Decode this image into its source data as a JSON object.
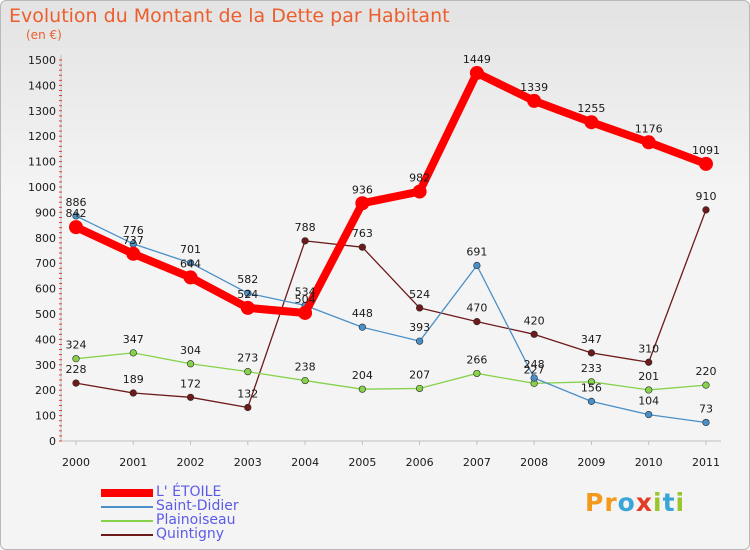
{
  "header": {
    "title": "Evolution du Montant de la Dette par Habitant",
    "subtitle": "(en €)"
  },
  "logo": {
    "letters": [
      "P",
      "r",
      "o",
      "x",
      "i",
      "t",
      "i"
    ],
    "colors": [
      "#f39a1c",
      "#f39a1c",
      "#3aa6d8",
      "#e53a24",
      "#9bc52c",
      "#3aa6d8",
      "#9bc52c"
    ]
  },
  "chart_data": {
    "type": "line",
    "title": "Evolution du Montant de la Dette par Habitant",
    "subtitle": "(en €)",
    "x": [
      "2000",
      "2001",
      "2002",
      "2003",
      "2004",
      "2005",
      "2006",
      "2007",
      "2008",
      "2009",
      "2010",
      "2011"
    ],
    "ylim": [
      0,
      1500
    ],
    "yticks": [
      "0",
      "100",
      "200",
      "300",
      "400",
      "500",
      "600",
      "700",
      "800",
      "900",
      "1000",
      "1100",
      "1200",
      "1300",
      "1400",
      "1500"
    ],
    "grid": false,
    "legend": "bottom-left",
    "series": [
      {
        "name": "L' ÉTOILE",
        "color": "#ff0000",
        "values": [
          842,
          737,
          644,
          524,
          504,
          936,
          982,
          1449,
          1339,
          1255,
          1176,
          1091
        ]
      },
      {
        "name": "Saint-Didier",
        "color": "#4a90c8",
        "values": [
          886,
          776,
          701,
          582,
          534,
          448,
          393,
          691,
          248,
          156,
          104,
          73
        ]
      },
      {
        "name": "Plainoiseau",
        "color": "#86d24b",
        "values": [
          324,
          347,
          304,
          273,
          238,
          204,
          207,
          266,
          227,
          233,
          201,
          220
        ]
      },
      {
        "name": "Quintigny",
        "color": "#6e1a1a",
        "values": [
          228,
          189,
          172,
          132,
          788,
          763,
          524,
          470,
          420,
          347,
          310,
          910
        ]
      }
    ]
  }
}
